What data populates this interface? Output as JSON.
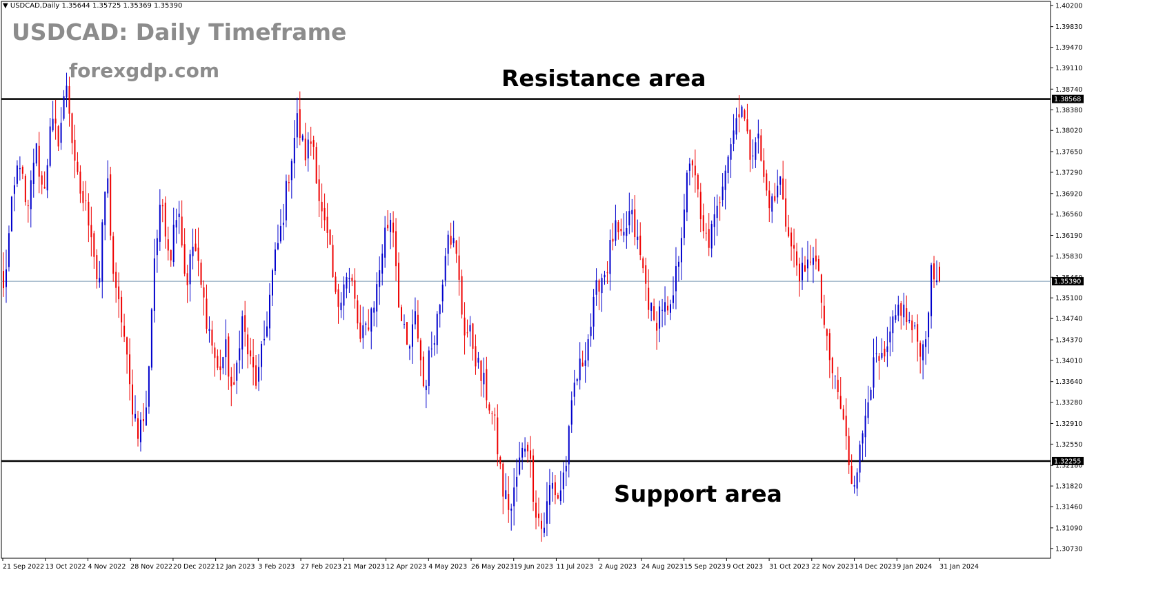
{
  "header": {
    "symbol_info": "USDCAD,Daily  1.35644 1.35725 1.35369 1.35390",
    "dropdown_arrow": "triangle-down-icon"
  },
  "watermark": {
    "title": "USDCAD: Daily Timeframe",
    "site": "forexgdp.com"
  },
  "annotations": {
    "resistance_label": "Resistance area",
    "support_label": "Support area"
  },
  "colors": {
    "bull": "#0000cc",
    "bear": "#ee0000",
    "level_line": "#000000",
    "price_line": "#7a9bb5",
    "axis": "#000000"
  },
  "chart_data": {
    "type": "candlestick",
    "symbol": "USDCAD",
    "timeframe": "Daily",
    "ylim": [
      1.3056,
      1.4027
    ],
    "y_ticks": [
      "1.40200",
      "1.39830",
      "1.39470",
      "1.39110",
      "1.38740",
      "1.38380",
      "1.38020",
      "1.37650",
      "1.37290",
      "1.36920",
      "1.36560",
      "1.36190",
      "1.35830",
      "1.35460",
      "1.35100",
      "1.34740",
      "1.34370",
      "1.34010",
      "1.33640",
      "1.33280",
      "1.32910",
      "1.32550",
      "1.32180",
      "1.31820",
      "1.31460",
      "1.31090",
      "1.30730"
    ],
    "x_ticks": [
      "21 Sep 2022",
      "13 Oct 2022",
      "4 Nov 2022",
      "28 Nov 2022",
      "20 Dec 2022",
      "12 Jan 2023",
      "3 Feb 2023",
      "27 Feb 2023",
      "21 Mar 2023",
      "12 Apr 2023",
      "4 May 2023",
      "26 May 2023",
      "19 Jun 2023",
      "11 Jul 2023",
      "2 Aug 2023",
      "24 Aug 2023",
      "15 Sep 2023",
      "9 Oct 2023",
      "31 Oct 2023",
      "22 Nov 2023",
      "14 Dec 2023",
      "9 Jan 2024",
      "31 Jan 2024"
    ],
    "levels": [
      {
        "name": "Resistance area",
        "value": 1.38568,
        "label": "1.38568"
      },
      {
        "name": "Support area",
        "value": 1.32255,
        "label": "1.32255"
      }
    ],
    "current_price": {
      "value": 1.3539,
      "label": "1.35390"
    },
    "last_candle": {
      "open": 1.35644,
      "high": 1.35725,
      "low": 1.35369,
      "close": 1.3539
    },
    "close_path": [
      1.352,
      1.366,
      1.376,
      1.364,
      1.378,
      1.369,
      1.381,
      1.379,
      1.389,
      1.373,
      1.368,
      1.364,
      1.352,
      1.374,
      1.352,
      1.347,
      1.334,
      1.328,
      1.331,
      1.358,
      1.368,
      1.358,
      1.369,
      1.353,
      1.361,
      1.352,
      1.345,
      1.338,
      1.342,
      1.333,
      1.348,
      1.34,
      1.336,
      1.345,
      1.356,
      1.363,
      1.373,
      1.382,
      1.376,
      1.379,
      1.366,
      1.36,
      1.349,
      1.355,
      1.353,
      1.343,
      1.347,
      1.352,
      1.362,
      1.366,
      1.348,
      1.341,
      1.348,
      1.335,
      1.343,
      1.35,
      1.364,
      1.359,
      1.346,
      1.344,
      1.338,
      1.334,
      1.328,
      1.317,
      1.314,
      1.322,
      1.327,
      1.315,
      1.31,
      1.319,
      1.316,
      1.323,
      1.336,
      1.34,
      1.346,
      1.354,
      1.356,
      1.363,
      1.36,
      1.366,
      1.36,
      1.353,
      1.346,
      1.35,
      1.347,
      1.357,
      1.37,
      1.376,
      1.362,
      1.361,
      1.366,
      1.375,
      1.38,
      1.386,
      1.376,
      1.38,
      1.37,
      1.367,
      1.372,
      1.361,
      1.357,
      1.354,
      1.36,
      1.352,
      1.34,
      1.336,
      1.328,
      1.319,
      1.324,
      1.335,
      1.34,
      1.339,
      1.345,
      1.35,
      1.347,
      1.344,
      1.342,
      1.355,
      1.3539
    ]
  }
}
